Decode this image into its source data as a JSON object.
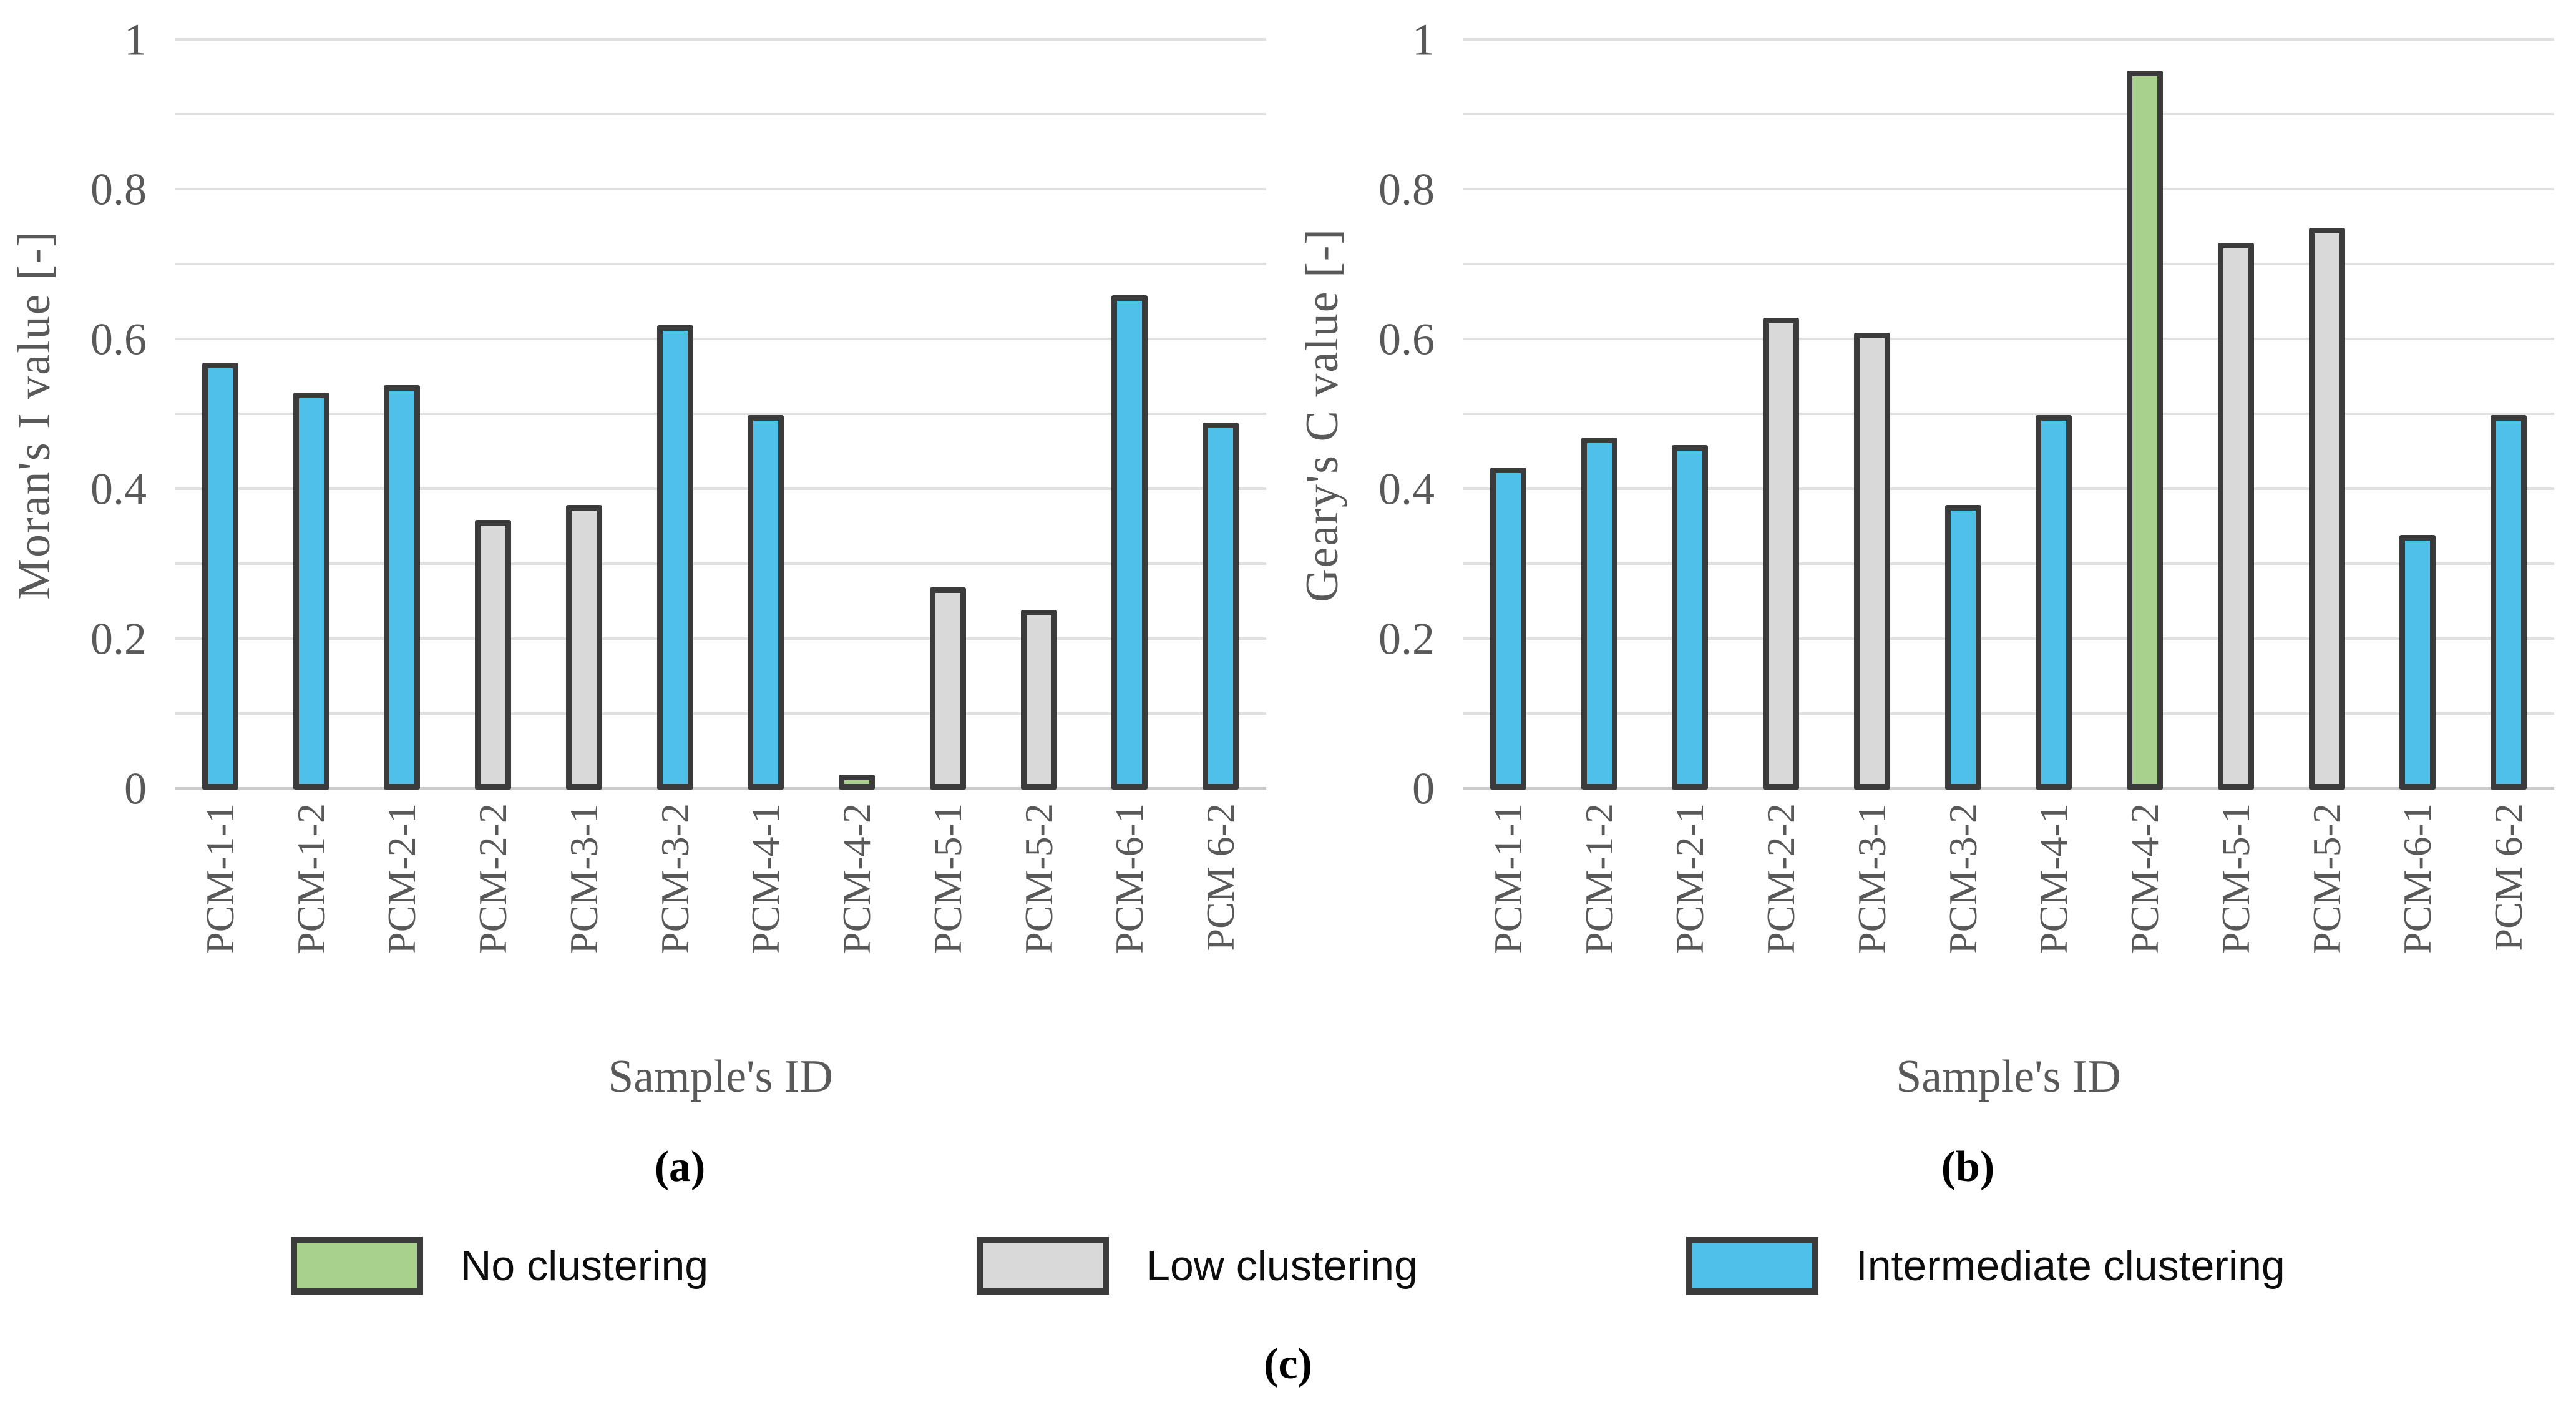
{
  "figure": {
    "panel_a_label": "(a)",
    "panel_b_label": "(b)",
    "caption_label": "(c)"
  },
  "colors": {
    "no_clustering": "#a9d18e",
    "low_clustering": "#d9d9d9",
    "intermediate_clustering": "#4fc0ea",
    "bar_border": "#3b3b3b",
    "axis_text": "#595959",
    "gridline": "#e0e0e0"
  },
  "legend": {
    "items": [
      {
        "key": "no_clustering",
        "label": "No clustering",
        "color": "#a9d18e"
      },
      {
        "key": "low_clustering",
        "label": "Low clustering",
        "color": "#d9d9d9"
      },
      {
        "key": "intermediate_clustering",
        "label": "Intermediate clustering",
        "color": "#4fc0ea"
      }
    ]
  },
  "chart_data": [
    {
      "id": "a",
      "type": "bar",
      "title": "",
      "ylabel": "Moran's I value [-]",
      "xlabel": "Sample's ID",
      "ylim": [
        0,
        1
      ],
      "grid_step": 0.1,
      "grid": "horizontal",
      "legend_position": "below-figure",
      "y_tick_labels": [
        {
          "value": 1,
          "label": "1"
        },
        {
          "value": 0.8,
          "label": "0.8"
        },
        {
          "value": 0.6,
          "label": "0.6"
        },
        {
          "value": 0.4,
          "label": "0.4"
        },
        {
          "value": 0.2,
          "label": "0.2"
        },
        {
          "value": 0,
          "label": "0"
        }
      ],
      "categories": [
        "PCM-1-1",
        "PCM-1-2",
        "PCM-2-1",
        "PCM-2-2",
        "PCM-3-1",
        "PCM-3-2",
        "PCM-4-1",
        "PCM-4-2",
        "PCM-5-1",
        "PCM-5-2",
        "PCM-6-1",
        "PCM 6-2"
      ],
      "values": [
        0.57,
        0.53,
        0.54,
        0.36,
        0.38,
        0.62,
        0.5,
        0.02,
        0.27,
        0.24,
        0.66,
        0.49
      ],
      "clusters": [
        "intermediate",
        "intermediate",
        "intermediate",
        "low",
        "low",
        "intermediate",
        "intermediate",
        "no",
        "low",
        "low",
        "intermediate",
        "intermediate"
      ]
    },
    {
      "id": "b",
      "type": "bar",
      "title": "",
      "ylabel": "Geary's C value [-]",
      "xlabel": "Sample's ID",
      "ylim": [
        0,
        1
      ],
      "grid_step": 0.1,
      "grid": "horizontal",
      "legend_position": "below-figure",
      "y_tick_labels": [
        {
          "value": 1,
          "label": "1"
        },
        {
          "value": 0.8,
          "label": "0.8"
        },
        {
          "value": 0.6,
          "label": "0.6"
        },
        {
          "value": 0.4,
          "label": "0.4"
        },
        {
          "value": 0.2,
          "label": "0.2"
        },
        {
          "value": 0,
          "label": "0"
        }
      ],
      "categories": [
        "PCM-1-1",
        "PCM-1-2",
        "PCM-2-1",
        "PCM-2-2",
        "PCM-3-1",
        "PCM-3-2",
        "PCM-4-1",
        "PCM-4-2",
        "PCM-5-1",
        "PCM-5-2",
        "PCM-6-1",
        "PCM 6-2"
      ],
      "values": [
        0.43,
        0.47,
        0.46,
        0.63,
        0.61,
        0.38,
        0.5,
        0.96,
        0.73,
        0.75,
        0.34,
        0.5
      ],
      "clusters": [
        "intermediate",
        "intermediate",
        "intermediate",
        "low",
        "low",
        "intermediate",
        "intermediate",
        "no",
        "low",
        "low",
        "intermediate",
        "intermediate"
      ]
    }
  ]
}
